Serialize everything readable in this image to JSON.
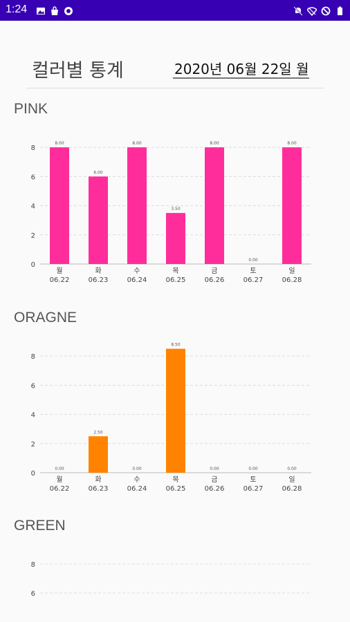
{
  "status_bar": {
    "time": "1:24",
    "left_icons": [
      "image-icon",
      "bag-icon",
      "sync-icon"
    ],
    "right_icons": [
      "mute-icon",
      "wifi-off-icon",
      "blocked-icon",
      "battery-icon"
    ],
    "background": "#3700b3"
  },
  "header": {
    "title": "컬러별 통계",
    "date_value": "2020년 06월 22일 월"
  },
  "sections": [
    {
      "title": "PINK",
      "color": "#ff2d9b"
    },
    {
      "title": "ORAGNE",
      "color": "#ff8300"
    },
    {
      "title": "GREEN",
      "color": "#2ecc40"
    }
  ],
  "chart_data": [
    {
      "type": "bar",
      "title": "PINK",
      "categories": [
        [
          "월",
          "06.22"
        ],
        [
          "화",
          "06.23"
        ],
        [
          "수",
          "06.24"
        ],
        [
          "목",
          "06.25"
        ],
        [
          "금",
          "06.26"
        ],
        [
          "토",
          "06.27"
        ],
        [
          "일",
          "06.28"
        ]
      ],
      "values": [
        8.0,
        6.0,
        8.0,
        3.5,
        8.0,
        0.0,
        8.0
      ],
      "value_labels": [
        "8.00",
        "6.00",
        "8.00",
        "3.50",
        "8.00",
        "0.00",
        "8.00"
      ],
      "yticks": [
        "0",
        "2",
        "4",
        "6",
        "8"
      ],
      "ylim": [
        0,
        8
      ],
      "grid": true,
      "color": "#ff2d9b"
    },
    {
      "type": "bar",
      "title": "ORAGNE",
      "categories": [
        [
          "월",
          "06.22"
        ],
        [
          "화",
          "06.23"
        ],
        [
          "수",
          "06.24"
        ],
        [
          "목",
          "06.25"
        ],
        [
          "금",
          "06.26"
        ],
        [
          "토",
          "06.27"
        ],
        [
          "일",
          "06.28"
        ]
      ],
      "values": [
        0.0,
        2.5,
        0.0,
        8.5,
        0.0,
        0.0,
        0.0
      ],
      "value_labels": [
        "0.00",
        "2.50",
        "0.00",
        "8.50",
        "0.00",
        "0.00",
        "0.00"
      ],
      "yticks": [
        "0",
        "2",
        "4",
        "6",
        "8"
      ],
      "ylim": [
        0,
        8.5
      ],
      "grid": true,
      "color": "#ff8300"
    },
    {
      "type": "bar",
      "title": "GREEN",
      "categories": [],
      "values": [],
      "value_labels": [],
      "yticks": [
        "6",
        "8"
      ],
      "ylim": [
        0,
        8
      ],
      "grid": true,
      "color": "#2ecc40"
    }
  ]
}
